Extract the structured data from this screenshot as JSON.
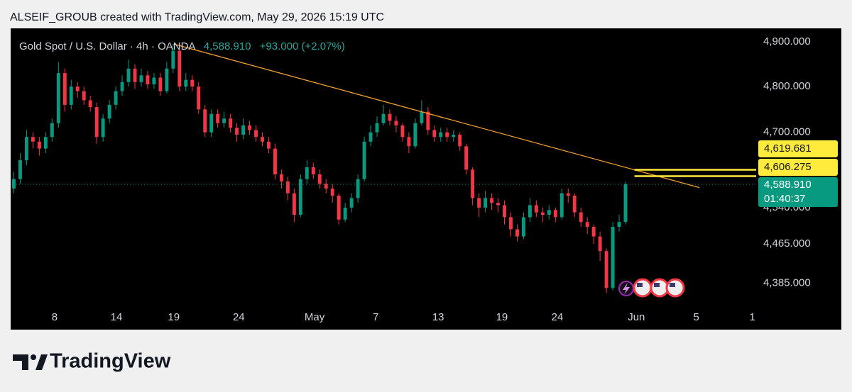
{
  "attribution": "ALSEIF_GROUB created with TradingView.com, May 29, 2026 15:19 UTC",
  "brand": "TradingView",
  "chart_data": {
    "type": "candlestick",
    "title": "Gold Spot / U.S. Dollar · 4h · OANDA",
    "price_text": "4,588.910",
    "change_text": "+93.000 (+2.07%)",
    "up_color": "#089981",
    "down_color": "#f23645",
    "log_scale": true,
    "grid": false,
    "xlim": [
      -0.5,
      116.5
    ],
    "ylim": [
      4292,
      4930.5
    ],
    "xticks": [
      {
        "value": 6.4,
        "label": "8"
      },
      {
        "value": 16.1,
        "label": "14"
      },
      {
        "value": 25.1,
        "label": "19"
      },
      {
        "value": 35.3,
        "label": "24"
      },
      {
        "value": 47.2,
        "label": "May"
      },
      {
        "value": 56.8,
        "label": "7"
      },
      {
        "value": 66.6,
        "label": "13"
      },
      {
        "value": 76.6,
        "label": "19"
      },
      {
        "value": 85.3,
        "label": "24"
      },
      {
        "value": 97.7,
        "label": "Jun"
      },
      {
        "value": 107.1,
        "label": "5"
      },
      {
        "value": 115.9,
        "label": "1"
      }
    ],
    "yticks": [
      {
        "value": 4900,
        "label": "4,900.000"
      },
      {
        "value": 4800,
        "label": "4,800.000"
      },
      {
        "value": 4700,
        "label": "4,700.000"
      },
      {
        "value": 4540,
        "label": "4,540.000"
      },
      {
        "value": 4465,
        "label": "4,465.000"
      },
      {
        "value": 4385,
        "label": "4,385.000"
      }
    ],
    "open": [
      4580,
      4600,
      4640,
      4690,
      4680,
      4665,
      4690,
      4720,
      4830,
      4760,
      4800,
      4790,
      4770,
      4755,
      4690,
      4730,
      4760,
      4790,
      4810,
      4840,
      4810,
      4825,
      4805,
      4820,
      4790,
      4840,
      4880,
      4800,
      4815,
      4800,
      4750,
      4700,
      4740,
      4720,
      4730,
      4710,
      4695,
      4715,
      4705,
      4690,
      4680,
      4665,
      4610,
      4595,
      4570,
      4525,
      4600,
      4625,
      4610,
      4590,
      4580,
      4565,
      4515,
      4540,
      4560,
      4600,
      4680,
      4700,
      4720,
      4740,
      4725,
      4715,
      4690,
      4670,
      4720,
      4745,
      4705,
      4690,
      4700,
      4690,
      4695,
      4670,
      4620,
      4560,
      4540,
      4560,
      4550,
      4545,
      4520,
      4495,
      4480,
      4520,
      4545,
      4530,
      4525,
      4535,
      4520,
      4570,
      4565,
      4530,
      4510,
      4500,
      4480,
      4450,
      4375,
      4500,
      4510
    ],
    "high": [
      4615,
      4655,
      4705,
      4700,
      4690,
      4700,
      4730,
      4855,
      4840,
      4815,
      4810,
      4800,
      4780,
      4765,
      4740,
      4770,
      4800,
      4825,
      4860,
      4850,
      4840,
      4835,
      4830,
      4830,
      4855,
      4895,
      4885,
      4830,
      4825,
      4810,
      4760,
      4750,
      4750,
      4745,
      4740,
      4720,
      4730,
      4725,
      4715,
      4700,
      4690,
      4675,
      4620,
      4605,
      4580,
      4610,
      4640,
      4635,
      4620,
      4600,
      4590,
      4570,
      4550,
      4570,
      4610,
      4690,
      4715,
      4735,
      4760,
      4750,
      4735,
      4720,
      4700,
      4730,
      4770,
      4755,
      4715,
      4710,
      4710,
      4705,
      4700,
      4675,
      4625,
      4570,
      4575,
      4570,
      4560,
      4555,
      4530,
      4505,
      4530,
      4560,
      4555,
      4540,
      4545,
      4540,
      4580,
      4580,
      4570,
      4540,
      4520,
      4505,
      4490,
      4455,
      4510,
      4525,
      4595
    ],
    "low": [
      4570,
      4590,
      4630,
      4665,
      4650,
      4655,
      4680,
      4710,
      4745,
      4750,
      4775,
      4760,
      4745,
      4675,
      4680,
      4720,
      4750,
      4780,
      4800,
      4795,
      4800,
      4795,
      4795,
      4780,
      4785,
      4830,
      4790,
      4790,
      4790,
      4740,
      4690,
      4690,
      4710,
      4710,
      4700,
      4680,
      4685,
      4695,
      4680,
      4670,
      4655,
      4600,
      4580,
      4555,
      4510,
      4520,
      4590,
      4600,
      4580,
      4570,
      4550,
      4505,
      4510,
      4530,
      4550,
      4595,
      4670,
      4690,
      4715,
      4715,
      4700,
      4680,
      4655,
      4665,
      4715,
      4695,
      4680,
      4680,
      4680,
      4680,
      4660,
      4610,
      4545,
      4520,
      4530,
      4535,
      4530,
      4505,
      4480,
      4470,
      4475,
      4510,
      4520,
      4510,
      4515,
      4510,
      4515,
      4550,
      4520,
      4500,
      4485,
      4465,
      4430,
      4365,
      4370,
      4490,
      4505
    ],
    "close": [
      4600,
      4640,
      4690,
      4680,
      4665,
      4690,
      4720,
      4830,
      4760,
      4800,
      4790,
      4770,
      4755,
      4690,
      4730,
      4760,
      4790,
      4810,
      4840,
      4810,
      4825,
      4805,
      4820,
      4790,
      4840,
      4880,
      4800,
      4815,
      4800,
      4750,
      4700,
      4740,
      4720,
      4730,
      4710,
      4695,
      4715,
      4705,
      4690,
      4680,
      4665,
      4610,
      4595,
      4570,
      4525,
      4600,
      4625,
      4610,
      4590,
      4580,
      4565,
      4515,
      4540,
      4560,
      4600,
      4680,
      4700,
      4720,
      4740,
      4725,
      4715,
      4690,
      4670,
      4720,
      4745,
      4705,
      4690,
      4700,
      4690,
      4695,
      4670,
      4620,
      4560,
      4540,
      4560,
      4550,
      4545,
      4520,
      4495,
      4480,
      4520,
      4545,
      4530,
      4525,
      4535,
      4520,
      4570,
      4565,
      4530,
      4510,
      4500,
      4480,
      4450,
      4375,
      4500,
      4510,
      4588.91
    ],
    "trendline": {
      "x": [
        25.1,
        107.6
      ],
      "values": [
        4895,
        4582
      ],
      "color": "#f0a030"
    },
    "levels": [
      {
        "value": 4619.681,
        "label": "4,619.681",
        "x_start": 97.4,
        "color": "#ffeb3b"
      },
      {
        "value": 4606.275,
        "label": "4,606.275",
        "x_start": 97.4,
        "color": "#ffeb3b"
      }
    ],
    "last_price": {
      "value": 4588.91,
      "label": "4,588.910",
      "countdown": "01:40:37",
      "color": "#089981"
    }
  }
}
